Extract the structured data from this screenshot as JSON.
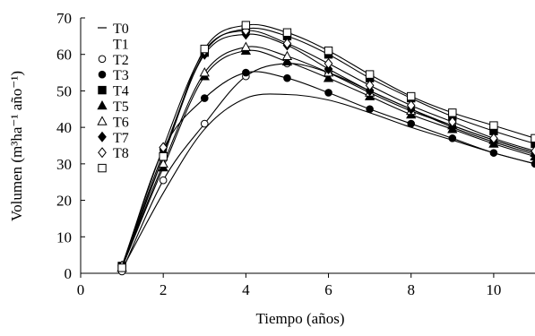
{
  "chart_data": {
    "type": "line",
    "title": "",
    "xlabel": "Tiempo (años)",
    "ylabel": "Volumen (m³ha⁻¹ año⁻¹)",
    "xlim": [
      0,
      11
    ],
    "ylim": [
      0,
      70
    ],
    "xticks": [
      0,
      2,
      4,
      6,
      8,
      10
    ],
    "yticks": [
      0,
      10,
      20,
      30,
      40,
      50,
      60,
      70
    ],
    "grid": false,
    "legend_position": "top-left",
    "legend_labels": [
      "T0",
      "T1",
      "T2",
      "T3",
      "T4",
      "T5",
      "T6",
      "T7",
      "T8"
    ],
    "series": [
      {
        "name": "T0",
        "marker": "none",
        "x": [
          1,
          2,
          3,
          4,
          5,
          6,
          7,
          8,
          9,
          10,
          11
        ],
        "y": [
          1.0,
          22.0,
          39.5,
          48.0,
          49.0,
          47.5,
          44.0,
          40.0,
          36.5,
          33.0,
          30.0
        ]
      },
      {
        "name": "T1",
        "marker": "circle-open",
        "x": [
          1,
          2,
          3,
          4,
          5,
          6,
          7,
          8,
          9,
          10,
          11
        ],
        "y": [
          0.5,
          25.5,
          41.0,
          54.0,
          57.5,
          55.0,
          50.0,
          45.0,
          40.5,
          36.5,
          33.0
        ]
      },
      {
        "name": "T2",
        "marker": "circle-filled",
        "x": [
          1,
          2,
          3,
          4,
          5,
          6,
          7,
          8,
          9,
          10,
          11
        ],
        "y": [
          1.5,
          34.0,
          48.0,
          55.0,
          53.5,
          49.5,
          45.0,
          41.0,
          37.0,
          33.0,
          30.0
        ]
      },
      {
        "name": "T3",
        "marker": "square-filled",
        "x": [
          1,
          2,
          3,
          4,
          5,
          6,
          7,
          8,
          9,
          10,
          11
        ],
        "y": [
          2.0,
          32.0,
          60.5,
          67.0,
          65.0,
          60.0,
          53.5,
          48.0,
          43.0,
          39.0,
          35.5
        ]
      },
      {
        "name": "T4",
        "marker": "triangle-filled",
        "x": [
          1,
          2,
          3,
          4,
          5,
          6,
          7,
          8,
          9,
          10,
          11
        ],
        "y": [
          1.5,
          29.0,
          54.0,
          61.0,
          58.0,
          53.5,
          48.5,
          43.5,
          39.5,
          35.5,
          32.0
        ]
      },
      {
        "name": "T5",
        "marker": "triangle-open",
        "x": [
          1,
          2,
          3,
          4,
          5,
          6,
          7,
          8,
          9,
          10,
          11
        ],
        "y": [
          1.5,
          30.0,
          55.0,
          62.0,
          59.5,
          55.0,
          49.5,
          44.5,
          40.5,
          36.5,
          33.0
        ]
      },
      {
        "name": "T6",
        "marker": "diamond-filled",
        "x": [
          1,
          2,
          3,
          4,
          5,
          6,
          7,
          8,
          9,
          10,
          11
        ],
        "y": [
          2.0,
          33.0,
          60.0,
          65.5,
          62.5,
          56.0,
          50.0,
          45.0,
          40.0,
          36.0,
          32.5
        ]
      },
      {
        "name": "T7",
        "marker": "diamond-open",
        "x": [
          1,
          2,
          3,
          4,
          5,
          6,
          7,
          8,
          9,
          10,
          11
        ],
        "y": [
          2.0,
          34.5,
          61.0,
          66.5,
          63.0,
          57.5,
          51.5,
          46.0,
          41.5,
          37.0,
          33.5
        ]
      },
      {
        "name": "T8",
        "marker": "square-open",
        "x": [
          1,
          2,
          3,
          4,
          5,
          6,
          7,
          8,
          9,
          10,
          11
        ],
        "y": [
          1.5,
          32.0,
          61.5,
          68.0,
          66.0,
          61.0,
          54.5,
          48.5,
          44.0,
          40.5,
          37.0
        ]
      }
    ]
  }
}
